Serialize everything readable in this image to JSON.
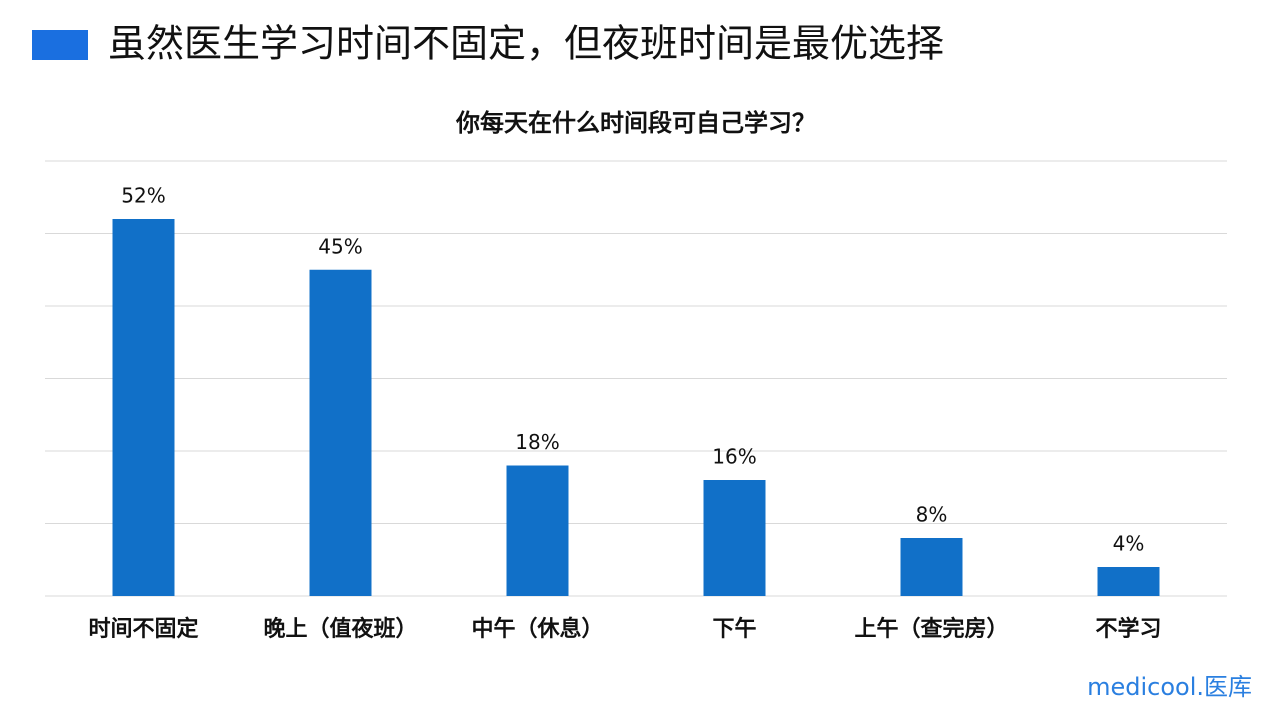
{
  "header": {
    "title": "虽然医生学习时间不固定，但夜班时间是最优选择"
  },
  "chart_data": {
    "type": "bar",
    "title": "你每天在什么时间段可自己学习？",
    "categories": [
      "时间不固定",
      "晚上（值夜班）",
      "中午（休息）",
      "下午",
      "上午（查完房）",
      "不学习"
    ],
    "values": [
      52,
      45,
      18,
      16,
      8,
      4
    ],
    "value_labels": [
      "52%",
      "45%",
      "18%",
      "16%",
      "8%",
      "4%"
    ],
    "color": "#1170c8",
    "ylim": [
      0,
      60
    ],
    "yticks": [
      0,
      10,
      20,
      30,
      40,
      50,
      60
    ],
    "grid": true
  },
  "footer": {
    "logo": "medicool.医库"
  }
}
